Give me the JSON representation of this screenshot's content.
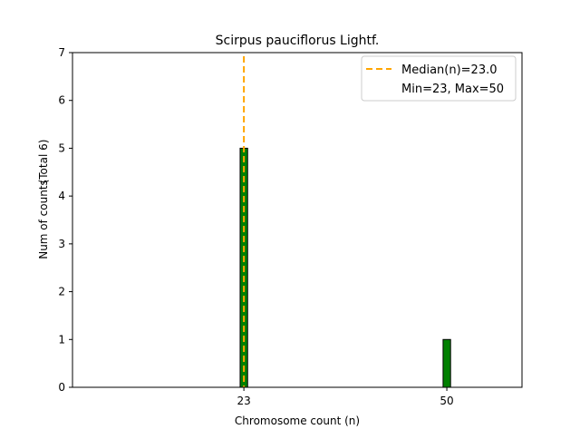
{
  "chart_data": {
    "type": "bar",
    "title": "Scirpus pauciflorus Lightf.",
    "xlabel": "Chromosome count (n)",
    "ylabel": "Num of counts",
    "ylabel2": "(Total 6)",
    "xlim": [
      0.2,
      60
    ],
    "ylim": [
      0,
      7
    ],
    "xticks": [
      23,
      50
    ],
    "yticks": [
      0,
      1,
      2,
      3,
      4,
      5,
      6,
      7
    ],
    "bar_width": 1,
    "bars": [
      {
        "x": 23,
        "value": 5
      },
      {
        "x": 50,
        "value": 1
      }
    ],
    "median": 23.0,
    "legend": {
      "placement": "top-right",
      "entries": [
        "Median(n)=23.0",
        "Min=23, Max=50"
      ]
    },
    "colors": {
      "bar": "#008000",
      "edge": "#000000",
      "median": "#FFA500"
    }
  }
}
